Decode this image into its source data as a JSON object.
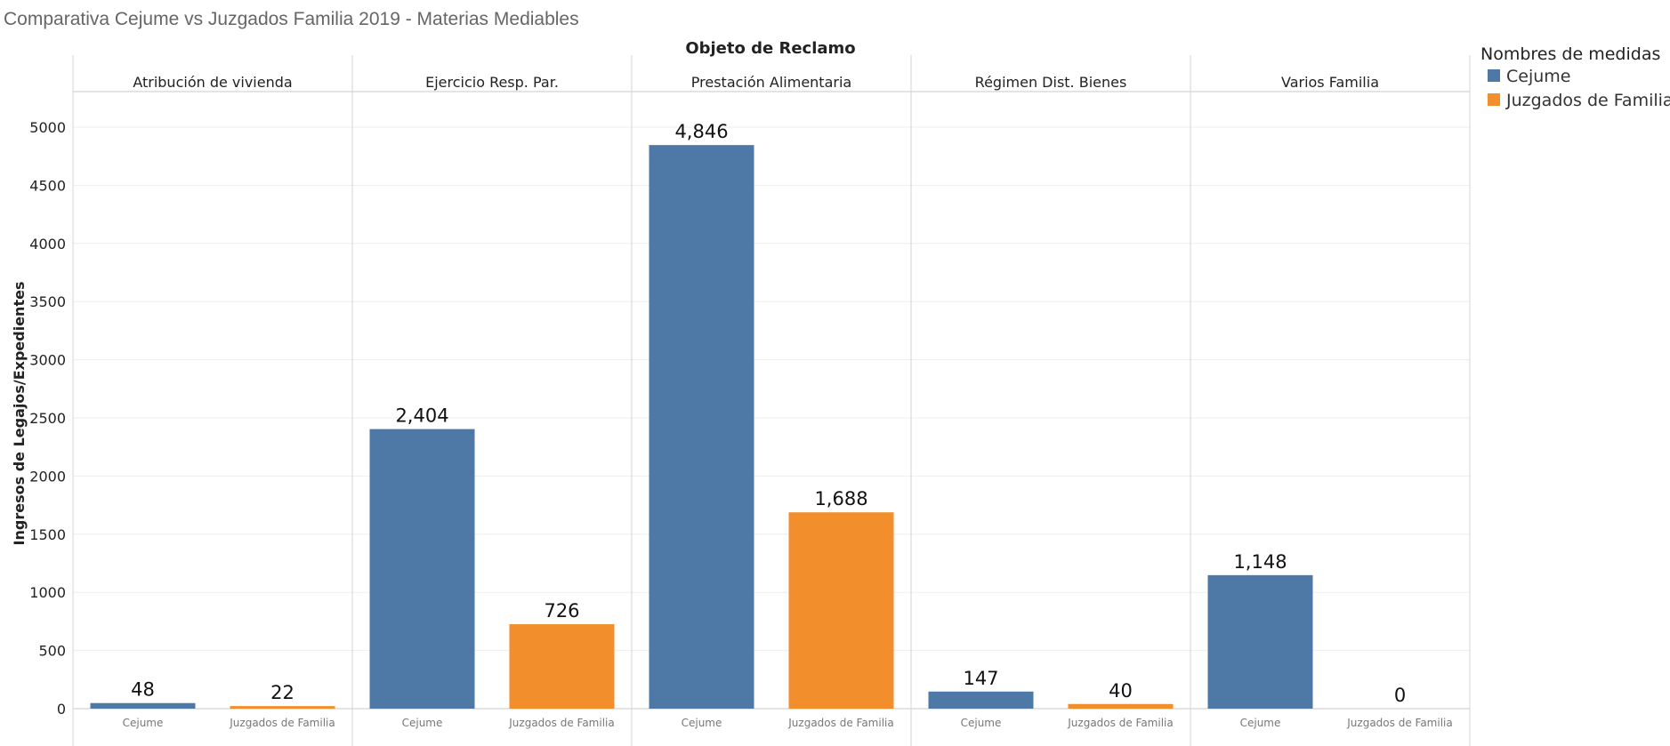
{
  "chart_data": {
    "type": "bar",
    "title": "Comparativa Cejume vs Juzgados Familia 2019 - Materias Mediables",
    "column_header": "Objeto de Reclamo",
    "ylabel": "Ingresos de Legajos/Expedientes",
    "ylim": [
      0,
      5300
    ],
    "yticks": [
      0,
      500,
      1000,
      1500,
      2000,
      2500,
      3000,
      3500,
      4000,
      4500,
      5000
    ],
    "gridlines": true,
    "legend": {
      "title": "Nombres de medidas",
      "position": "top-right",
      "items": [
        {
          "name": "Cejume",
          "color": "#4e79a7"
        },
        {
          "name": "Juzgados de Familia",
          "color": "#f28e2b"
        }
      ]
    },
    "panes": [
      {
        "name": "Atribución de vivienda",
        "bars": [
          {
            "category": "Cejume",
            "value": 48,
            "label": "48",
            "color": "#4e79a7"
          },
          {
            "category": "Juzgados de Familia",
            "value": 22,
            "label": "22",
            "color": "#f28e2b"
          }
        ]
      },
      {
        "name": "Ejercicio Resp. Par.",
        "bars": [
          {
            "category": "Cejume",
            "value": 2404,
            "label": "2,404",
            "color": "#4e79a7"
          },
          {
            "category": "Juzgados de Familia",
            "value": 726,
            "label": "726",
            "color": "#f28e2b"
          }
        ]
      },
      {
        "name": "Prestación Alimentaria",
        "bars": [
          {
            "category": "Cejume",
            "value": 4846,
            "label": "4,846",
            "color": "#4e79a7"
          },
          {
            "category": "Juzgados de Familia",
            "value": 1688,
            "label": "1,688",
            "color": "#f28e2b"
          }
        ]
      },
      {
        "name": "Régimen Dist. Bienes",
        "bars": [
          {
            "category": "Cejume",
            "value": 147,
            "label": "147",
            "color": "#4e79a7"
          },
          {
            "category": "Juzgados de Familia",
            "value": 40,
            "label": "40",
            "color": "#f28e2b"
          }
        ]
      },
      {
        "name": "Varios Familia",
        "bars": [
          {
            "category": "Cejume",
            "value": 1148,
            "label": "1,148",
            "color": "#4e79a7"
          },
          {
            "category": "Juzgados de Familia",
            "value": 0,
            "label": "0",
            "color": "#f28e2b"
          }
        ]
      }
    ]
  }
}
